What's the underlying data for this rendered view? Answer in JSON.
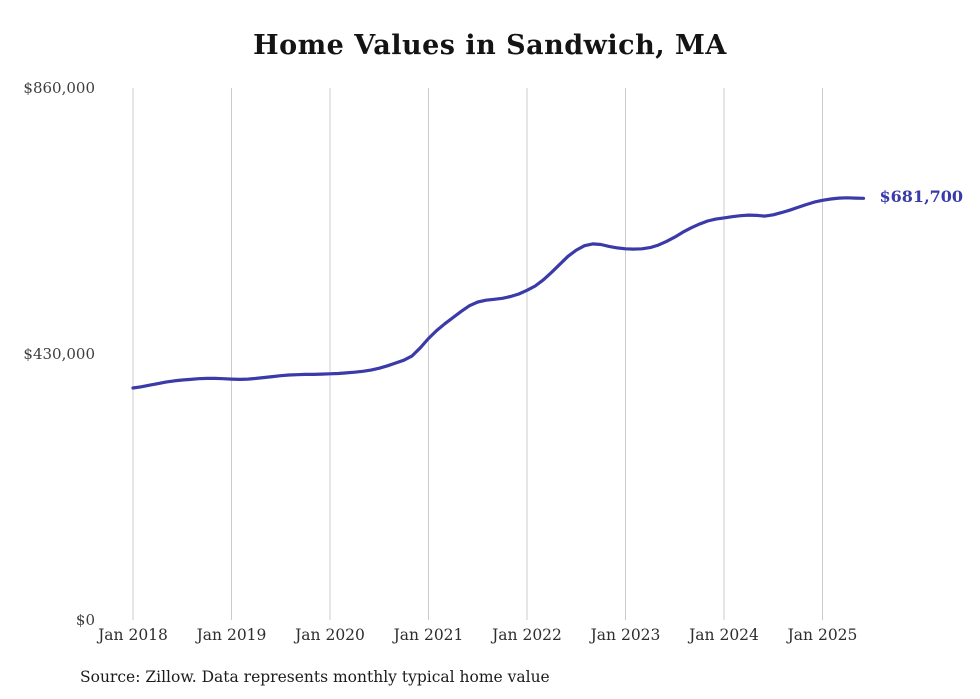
{
  "title": "Home Values in Sandwich, MA",
  "source_note": "Source: Zillow. Data represents monthly typical home value",
  "end_label": "$681,700",
  "colors": {
    "line": "#3a3aa8",
    "end_label": "#3a3aa8",
    "grid": "#cccccc",
    "title": "#141414",
    "axis_text": "#3d3d3d"
  },
  "chart_data": {
    "type": "line",
    "title": "Home Values in Sandwich, MA",
    "xlabel": "",
    "ylabel": "",
    "ylim": [
      0,
      860000
    ],
    "grid": "vertical-only",
    "legend": "none",
    "frequency": "monthly",
    "x_start": "Jan 2018",
    "x_end": "Jun 2025",
    "x_tick_labels": [
      "Jan 2018",
      "Jan 2019",
      "Jan 2020",
      "Jan 2021",
      "Jan 2022",
      "Jan 2023",
      "Jan 2024",
      "Jan 2025"
    ],
    "y_ticks": [
      {
        "label": "$0",
        "value": 0
      },
      {
        "label": "$430,000",
        "value": 430000
      },
      {
        "label": "$860,000",
        "value": 860000
      }
    ],
    "series": [
      {
        "name": "Typical home value",
        "final_value": 681700,
        "values": [
          375000,
          377000,
          379500,
          382000,
          384500,
          386500,
          388000,
          389000,
          390000,
          390500,
          390500,
          390000,
          389500,
          389000,
          389500,
          390500,
          392000,
          393500,
          395000,
          396000,
          396500,
          397000,
          397000,
          397500,
          398000,
          398500,
          399500,
          400500,
          402000,
          404000,
          407000,
          411000,
          415500,
          420000,
          427000,
          440000,
          455000,
          468000,
          479000,
          489000,
          499000,
          508000,
          514000,
          517000,
          518500,
          520000,
          523000,
          527000,
          533000,
          540000,
          550000,
          562000,
          575000,
          588000,
          598000,
          605000,
          608000,
          607000,
          604000,
          601500,
          600000,
          599500,
          600000,
          602000,
          606000,
          612000,
          619000,
          627000,
          634000,
          640000,
          645000,
          648000,
          650000,
          652000,
          653500,
          654500,
          654000,
          653000,
          655000,
          658500,
          662500,
          667000,
          671500,
          675500,
          678500,
          680500,
          682000,
          682500,
          682000,
          681700
        ]
      }
    ]
  }
}
